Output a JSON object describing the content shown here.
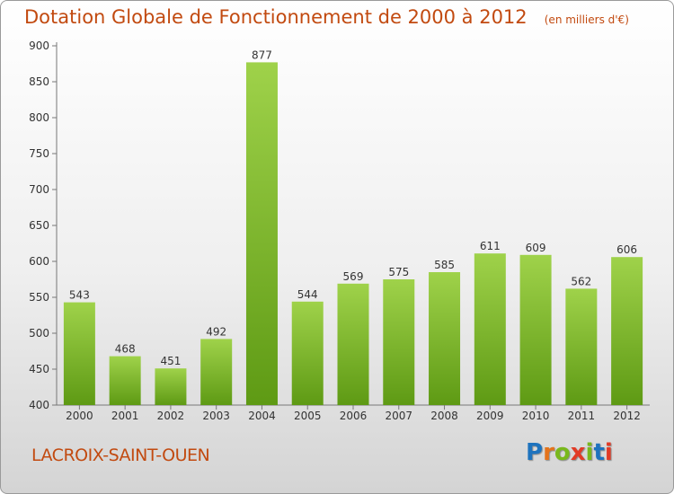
{
  "title": "Dotation Globale de Fonctionnement de 2000 à 2012",
  "unit": "(en milliers d'€)",
  "town": "LACROIX-SAINT-OUEN",
  "brand": "Proxiti",
  "colors": {
    "title": "#c24a10",
    "bar_light": "#9fd24a",
    "bar_dark": "#5e9a14",
    "brand_letters": [
      "#1e73be",
      "#e4731b",
      "#79b81d",
      "#e23b26",
      "#79b81d",
      "#1e73be",
      "#e23b26"
    ]
  },
  "chart_data": {
    "type": "bar",
    "categories": [
      "2000",
      "2001",
      "2002",
      "2003",
      "2004",
      "2005",
      "2006",
      "2007",
      "2008",
      "2009",
      "2010",
      "2011",
      "2012"
    ],
    "values": [
      543,
      468,
      451,
      492,
      877,
      544,
      569,
      575,
      585,
      611,
      609,
      562,
      606
    ],
    "ylim": [
      400,
      900
    ],
    "yticks": [
      400,
      450,
      500,
      550,
      600,
      650,
      700,
      750,
      800,
      850,
      900
    ],
    "grid": false,
    "data_labels": true
  }
}
